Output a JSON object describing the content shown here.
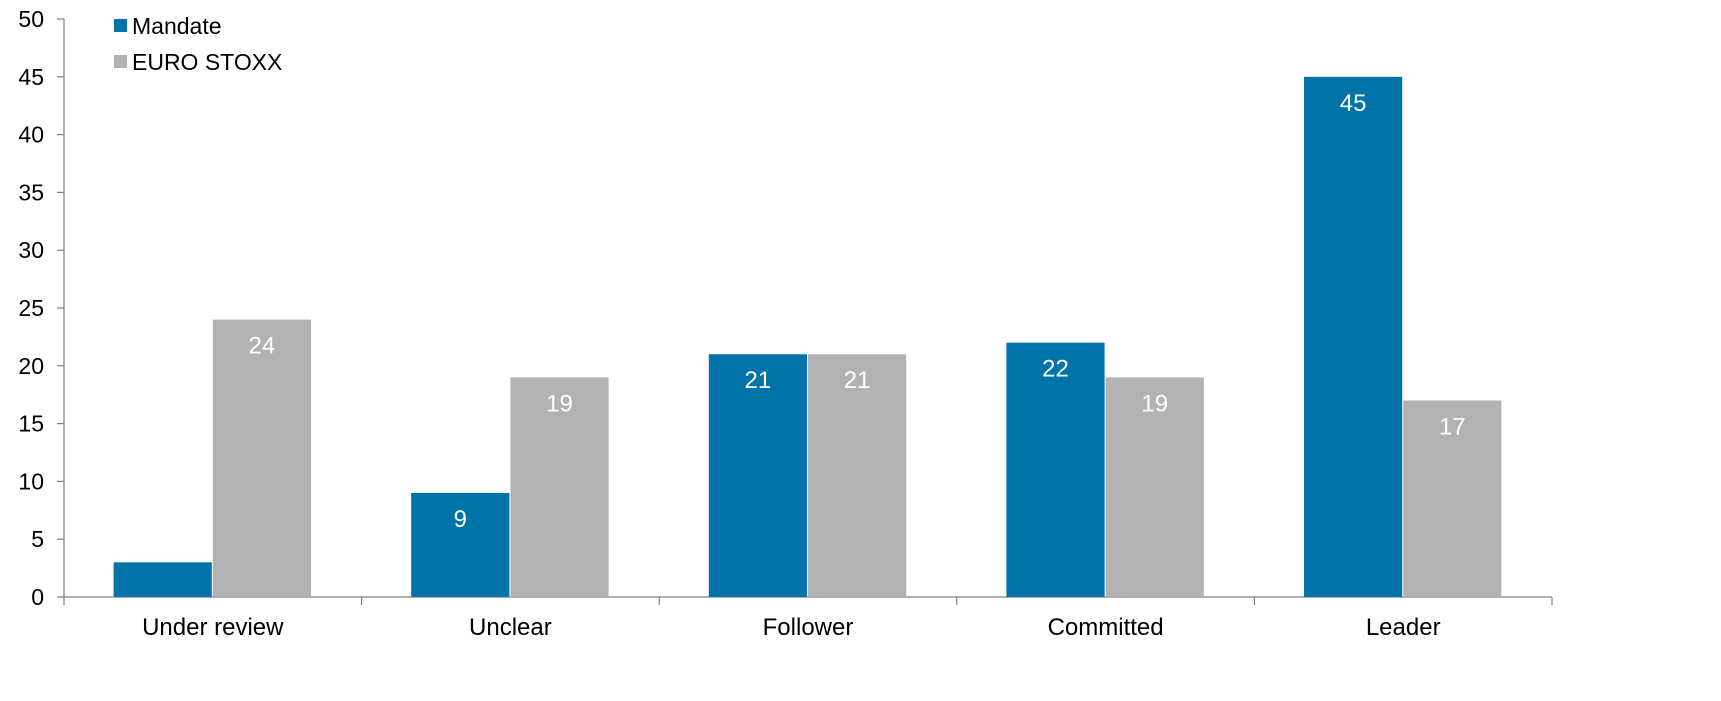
{
  "chart_data": {
    "type": "bar",
    "title": "",
    "xlabel": "",
    "ylabel": "",
    "categories": [
      "Under review",
      "Unclear",
      "Follower",
      "Committed",
      "Leader"
    ],
    "series": [
      {
        "name": "Mandate",
        "color": "#0073A8",
        "values": [
          3,
          9,
          21,
          22,
          45
        ],
        "labels": [
          "",
          "9",
          "21",
          "22",
          "45"
        ]
      },
      {
        "name": "EURO STOXX",
        "color": "#B2B2B2",
        "values": [
          24,
          19,
          21,
          19,
          17
        ],
        "labels": [
          "24",
          "19",
          "21",
          "19",
          "17"
        ]
      }
    ],
    "ylim": [
      0,
      50
    ],
    "yticks": [
      0,
      5,
      10,
      15,
      20,
      25,
      30,
      35,
      40,
      45,
      50
    ],
    "grid": false,
    "legend_position": "top-left",
    "data_labels": "inside-top"
  }
}
